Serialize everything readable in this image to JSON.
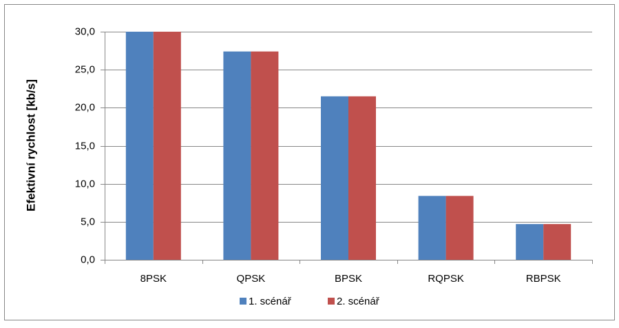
{
  "chart_data": {
    "type": "bar",
    "y_label": "Efektivní rychlost [kb/s]",
    "categories": [
      "8PSK",
      "QPSK",
      "BPSK",
      "RQPSK",
      "RBPSK"
    ],
    "series": [
      {
        "name": "1. scénář",
        "color": "#4f81bd",
        "values": [
          30.0,
          27.4,
          21.5,
          8.4,
          4.7
        ]
      },
      {
        "name": "2. scénář",
        "color": "#c0504d",
        "values": [
          30.0,
          27.4,
          21.5,
          8.4,
          4.7
        ]
      }
    ],
    "ylim": [
      0,
      30
    ],
    "yticks": [
      {
        "value": 0,
        "label": "0,0"
      },
      {
        "value": 5,
        "label": "5,0"
      },
      {
        "value": 10,
        "label": "10,0"
      },
      {
        "value": 15,
        "label": "15,0"
      },
      {
        "value": 20,
        "label": "20,0"
      },
      {
        "value": 25,
        "label": "25,0"
      },
      {
        "value": 30,
        "label": "30,0"
      }
    ],
    "grid": true,
    "legend": "bottom"
  }
}
